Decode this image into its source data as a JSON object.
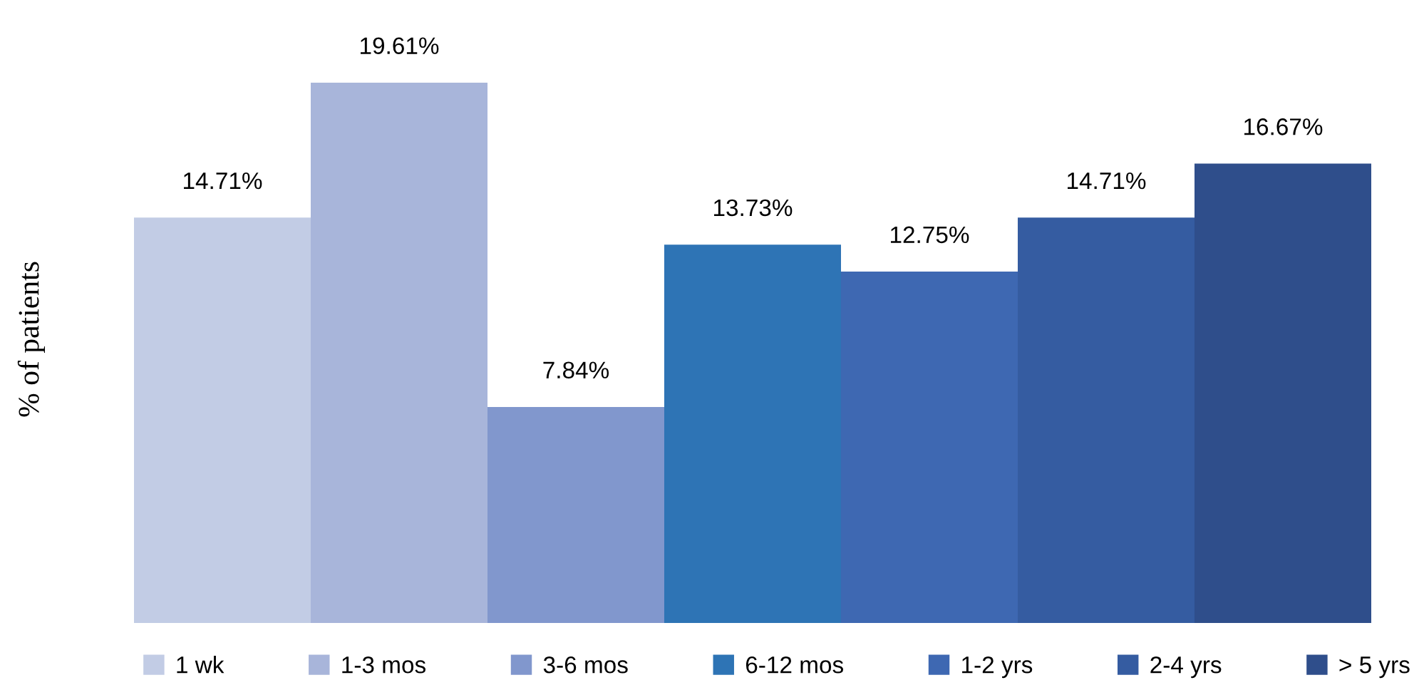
{
  "chart_data": {
    "type": "bar",
    "ylabel": "% of patients",
    "categories": [
      null
    ],
    "tick_labels": false,
    "grid": false,
    "legend": "bottom",
    "series": [
      {
        "name": "1 wk",
        "color": "#c2cce5",
        "values": [
          14.71
        ],
        "value_labels": [
          "14.71%"
        ]
      },
      {
        "name": "1-3 mos",
        "color": "#a8b5da",
        "values": [
          19.61
        ],
        "value_labels": [
          "19.61%"
        ]
      },
      {
        "name": "3-6 mos",
        "color": "#8197cd",
        "values": [
          7.84
        ],
        "value_labels": [
          "7.84%"
        ]
      },
      {
        "name": "6-12 mos",
        "color": "#2e74b5",
        "values": [
          13.73
        ],
        "value_labels": [
          "13.73%"
        ]
      },
      {
        "name": "1-2 yrs",
        "color": "#3e68b2",
        "values": [
          12.75
        ],
        "value_labels": [
          "12.75%"
        ]
      },
      {
        "name": "2-4 yrs",
        "color": "#355ca1",
        "values": [
          14.71
        ],
        "value_labels": [
          "14.71%"
        ]
      },
      {
        "name": "> 5 yrs",
        "color": "#2f4e8b",
        "values": [
          16.67
        ],
        "value_labels": [
          "16.67%"
        ]
      }
    ]
  }
}
